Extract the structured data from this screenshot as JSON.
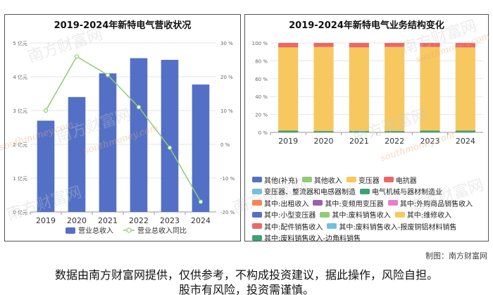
{
  "left_chart": {
    "title": "2019-2024年新特电气营收状况",
    "type": "bar",
    "categories": [
      "2019",
      "2020",
      "2021",
      "2022",
      "2023",
      "2024"
    ],
    "series": [
      {
        "name": "营业总收入",
        "type": "bar",
        "axis": "left",
        "color": "#5470c6",
        "values": [
          2.7,
          3.4,
          4.1,
          4.55,
          4.5,
          3.77
        ]
      },
      {
        "name": "营业总收入同比",
        "type": "line",
        "axis": "right",
        "color": "#91cc75",
        "values": [
          10,
          26,
          20.5,
          11,
          -1,
          -17
        ]
      }
    ],
    "y_left": {
      "ylim": [
        0,
        5
      ],
      "ticks": [
        "0 亿元",
        "1 亿元",
        "2 亿元",
        "3 亿元",
        "4 亿元",
        "5 亿元"
      ]
    },
    "y_right": {
      "ylim": [
        -20,
        30
      ],
      "ticks": [
        "-20 %",
        "-10 %",
        "0 %",
        "10 %",
        "20 %",
        "30 %"
      ]
    },
    "legend": [
      "营业总收入",
      "营业总收入同比"
    ]
  },
  "right_chart": {
    "title": "2019-2024年新特电气业务结构变化",
    "type": "bar",
    "stacked": "percent",
    "categories": [
      "2019",
      "2020",
      "2021",
      "2022",
      "2023",
      "2024"
    ],
    "y_ticks": [
      "0 %",
      "20 %",
      "40 %",
      "60 %",
      "80 %",
      "100 %"
    ],
    "ylim": [
      0,
      100
    ],
    "series": [
      {
        "name": "其中:废料销售收入-边角料销售",
        "color": "#3ba272",
        "values": [
          2,
          1.5,
          1.5,
          1.5,
          2,
          2
        ]
      },
      {
        "name": "变压器",
        "color": "#f6c85f",
        "values": [
          93,
          94,
          93.5,
          94,
          93.5,
          93
        ]
      },
      {
        "name": "电抗器",
        "color": "#ee6666",
        "values": [
          5,
          4.5,
          5,
          4.5,
          4.5,
          5
        ]
      }
    ],
    "legend_rows": [
      [
        {
          "name": "其他(补充)",
          "color": "#5470c6"
        },
        {
          "name": "其他收入",
          "color": "#91cc75"
        },
        {
          "name": "变压器",
          "color": "#fac858"
        },
        {
          "name": "电抗器",
          "color": "#ee6666"
        }
      ],
      [
        {
          "name": "变压器、整流器和电感器制造",
          "color": "#73c0de"
        },
        {
          "name": "电气机械与器材制造业",
          "color": "#3ba272"
        }
      ],
      [
        {
          "name": "其中:出租收入",
          "color": "#fc8452"
        },
        {
          "name": "其中:变频用变压器",
          "color": "#9a60b4"
        },
        {
          "name": "其中:外购商品销售收入",
          "color": "#ea7ccc"
        }
      ],
      [
        {
          "name": "其中:小型变压器",
          "color": "#5470c6"
        },
        {
          "name": "其中:废料销售收入",
          "color": "#91cc75"
        },
        {
          "name": "其中:维修收入",
          "color": "#fac858"
        }
      ],
      [
        {
          "name": "其中:配件销售收入",
          "color": "#ee6666"
        },
        {
          "name": "其中:废料销售收入-报废铜铝材料销售",
          "color": "#73c0de"
        }
      ],
      [
        {
          "name": "其中:废料销售收入-边角料销售",
          "color": "#3ba272"
        }
      ]
    ]
  },
  "watermark": {
    "cn": "南方财富网",
    "en": "southmoney.com"
  },
  "credit": "制图：南方财富网",
  "disclaimer": {
    "line1": "数据由南方财富网提供，仅供参考，不构成投资建议，据此操作，风险自担。",
    "line2": "股市有风险，投资需谨慎。"
  }
}
